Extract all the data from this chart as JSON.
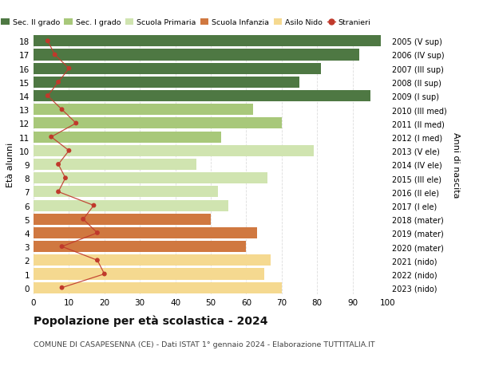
{
  "ages": [
    0,
    1,
    2,
    3,
    4,
    5,
    6,
    7,
    8,
    9,
    10,
    11,
    12,
    13,
    14,
    15,
    16,
    17,
    18
  ],
  "years": [
    "2023 (nido)",
    "2022 (nido)",
    "2021 (nido)",
    "2020 (mater)",
    "2019 (mater)",
    "2018 (mater)",
    "2017 (I ele)",
    "2016 (II ele)",
    "2015 (III ele)",
    "2014 (IV ele)",
    "2013 (V ele)",
    "2012 (I med)",
    "2011 (II med)",
    "2010 (III med)",
    "2009 (I sup)",
    "2008 (II sup)",
    "2007 (III sup)",
    "2006 (IV sup)",
    "2005 (V sup)"
  ],
  "bar_values": [
    70,
    65,
    67,
    60,
    63,
    50,
    55,
    52,
    66,
    46,
    79,
    53,
    70,
    62,
    95,
    75,
    81,
    92,
    98
  ],
  "bar_colors": [
    "#F5D990",
    "#F5D990",
    "#F5D990",
    "#D07840",
    "#D07840",
    "#D07840",
    "#D0E4B0",
    "#D0E4B0",
    "#D0E4B0",
    "#D0E4B0",
    "#D0E4B0",
    "#A8C87A",
    "#A8C87A",
    "#A8C87A",
    "#4E7843",
    "#4E7843",
    "#4E7843",
    "#4E7843",
    "#4E7843"
  ],
  "stranieri": [
    8,
    20,
    18,
    8,
    18,
    14,
    17,
    7,
    9,
    7,
    10,
    5,
    12,
    8,
    4,
    7,
    10,
    6,
    4
  ],
  "xlabel": "Età alunni",
  "ylabel": "Anni di nascita",
  "title": "Popolazione per età scolastica - 2024",
  "subtitle": "COMUNE DI CASAPESENNA (CE) - Dati ISTAT 1° gennaio 2024 - Elaborazione TUTTITALIA.IT",
  "xlim": [
    0,
    100
  ],
  "legend_labels": [
    "Sec. II grado",
    "Sec. I grado",
    "Scuola Primaria",
    "Scuola Infanzia",
    "Asilo Nido",
    "Stranieri"
  ],
  "legend_colors": [
    "#4E7843",
    "#A8C87A",
    "#D0E4B0",
    "#D07840",
    "#F5D990",
    "#C0392B"
  ],
  "bg_color": "#FFFFFF",
  "grid_color": "#DDDDDD"
}
